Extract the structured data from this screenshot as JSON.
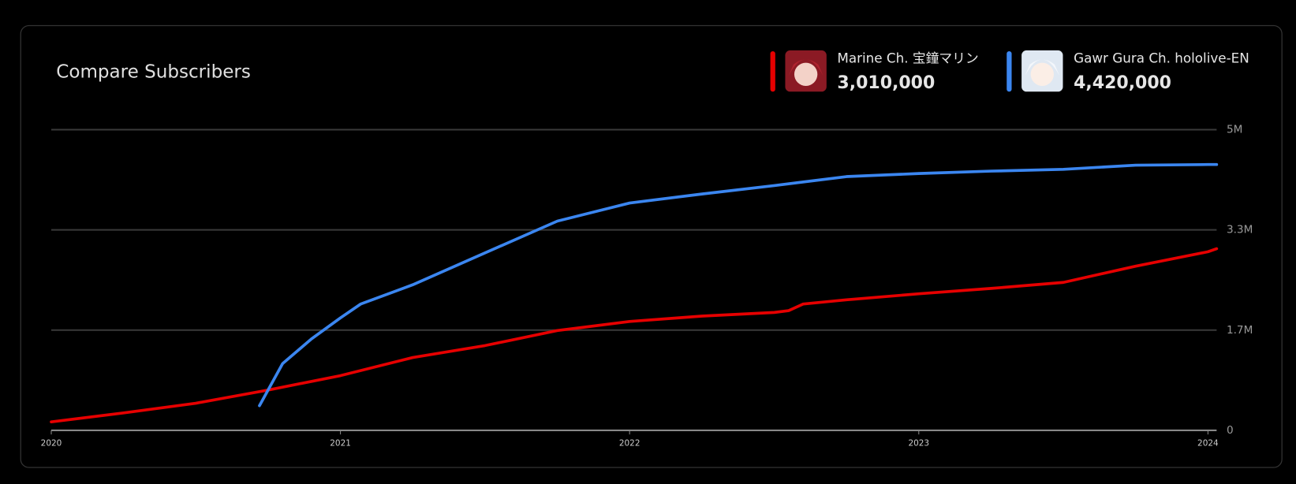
{
  "chart_data": {
    "type": "line",
    "title": "Compare Subscribers",
    "xlim": [
      2020,
      2024.03
    ],
    "xticks": [
      2020,
      2021,
      2022,
      2023,
      2024
    ],
    "ylim": [
      0,
      5000000
    ],
    "yticks": [
      {
        "value": 0,
        "label": "0"
      },
      {
        "value": 1666667,
        "label": "1.7M"
      },
      {
        "value": 3333333,
        "label": "3.3M"
      },
      {
        "value": 5000000,
        "label": "5M"
      }
    ],
    "grid": true,
    "series": [
      {
        "name": "Marine Ch. 宝鐘マリン",
        "color": "#e60000",
        "subscribers": "3,010,000",
        "x": [
          2020.0,
          2020.25,
          2020.5,
          2020.75,
          2021.0,
          2021.25,
          2021.5,
          2021.75,
          2022.0,
          2022.25,
          2022.5,
          2022.55,
          2022.6,
          2022.75,
          2023.0,
          2023.25,
          2023.5,
          2023.75,
          2024.0,
          2024.03
        ],
        "values": [
          140000,
          290000,
          450000,
          670000,
          910000,
          1210000,
          1410000,
          1660000,
          1810000,
          1900000,
          1960000,
          1990000,
          2100000,
          2170000,
          2270000,
          2360000,
          2460000,
          2730000,
          2970000,
          3020000
        ]
      },
      {
        "name": "Gawr Gura Ch. hololive-EN",
        "color": "#3b86f0",
        "subscribers": "4,420,000",
        "x": [
          2020.72,
          2020.8,
          2020.9,
          2021.0,
          2021.07,
          2021.25,
          2021.5,
          2021.75,
          2022.0,
          2022.25,
          2022.5,
          2022.75,
          2023.0,
          2023.25,
          2023.5,
          2023.75,
          2024.0,
          2024.03
        ],
        "values": [
          410000,
          1110000,
          1520000,
          1870000,
          2100000,
          2420000,
          2950000,
          3480000,
          3780000,
          3930000,
          4070000,
          4220000,
          4270000,
          4310000,
          4340000,
          4410000,
          4420000,
          4420000
        ]
      }
    ]
  }
}
